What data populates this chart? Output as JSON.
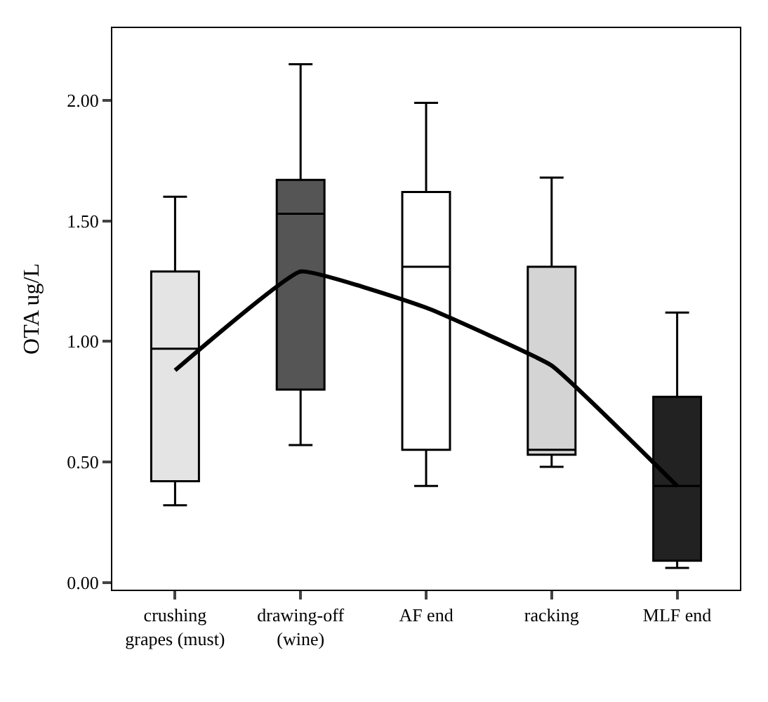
{
  "chart_data": {
    "type": "box",
    "ylabel": "OTA ug/L",
    "categories": [
      "crushing\ngrapes (must)",
      "drawing-off\n(wine)",
      "AF end",
      "racking",
      "MLF end"
    ],
    "boxes": [
      {
        "low": 0.32,
        "q1": 0.42,
        "median": 0.97,
        "q3": 1.29,
        "high": 1.6
      },
      {
        "low": 0.57,
        "q1": 0.8,
        "median": 1.53,
        "q3": 1.67,
        "high": 2.15
      },
      {
        "low": 0.4,
        "q1": 0.55,
        "median": 1.31,
        "q3": 1.62,
        "high": 1.99
      },
      {
        "low": 0.48,
        "q1": 0.53,
        "median": 0.55,
        "q3": 1.31,
        "high": 1.68
      },
      {
        "low": 0.06,
        "q1": 0.09,
        "median": 0.4,
        "q3": 0.77,
        "high": 1.12
      }
    ],
    "colors": [
      "#e4e4e4",
      "#555555",
      "#ffffff",
      "#d4d4d4",
      "#222222"
    ],
    "series": [
      {
        "type": "line",
        "color": "#000000",
        "values": [
          0.88,
          1.29,
          1.14,
          0.9,
          0.4
        ]
      }
    ],
    "ylim": [
      -0.03,
      2.3
    ],
    "yticks": [
      {
        "value": 0,
        "label": "0.00"
      },
      {
        "value": 0.5,
        "label": "0.50"
      },
      {
        "value": 1,
        "label": "1.00"
      },
      {
        "value": 1.5,
        "label": "1.50"
      },
      {
        "value": 2,
        "label": "2.00"
      }
    ],
    "line_style": "solid"
  }
}
